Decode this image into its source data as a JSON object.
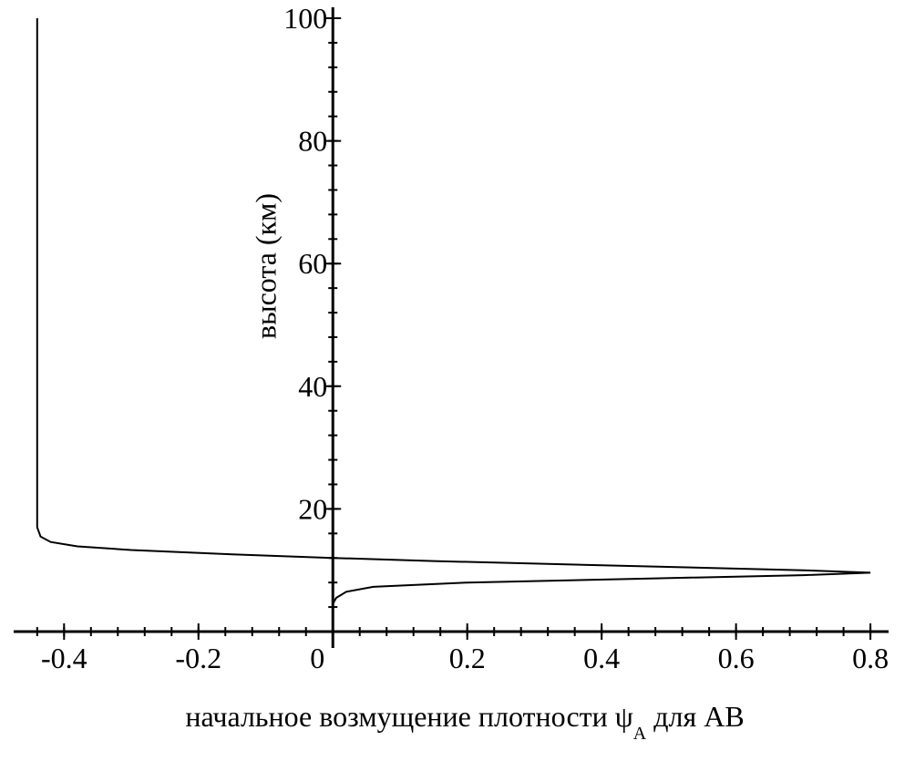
{
  "chart_data": {
    "type": "line",
    "xlabel": "начальное возмущение плотности ψ",
    "xlabel_sub": "A",
    "xlabel_end": " для AB",
    "ylabel": "высота (км)",
    "x": [
      0,
      0.005,
      0.02,
      0.06,
      0.2,
      0.45,
      0.7,
      0.8,
      0.7,
      0.4,
      0.15,
      0,
      -0.15,
      -0.3,
      -0.38,
      -0.42,
      -0.435,
      -0.44,
      -0.44
    ],
    "y": [
      4.5,
      5.5,
      6.5,
      7.3,
      8,
      8.6,
      9.2,
      9.6,
      10,
      10.8,
      11.5,
      12,
      12.6,
      13.3,
      13.9,
      14.6,
      15.5,
      17,
      100
    ],
    "color": "#000000",
    "xlim": [
      -0.475,
      0.827
    ],
    "ylim": [
      0,
      100
    ],
    "xticks": [
      -0.4,
      -0.2,
      0,
      0.2,
      0.4,
      0.6,
      0.8
    ],
    "yticks": [
      20,
      40,
      60,
      80,
      100
    ]
  }
}
